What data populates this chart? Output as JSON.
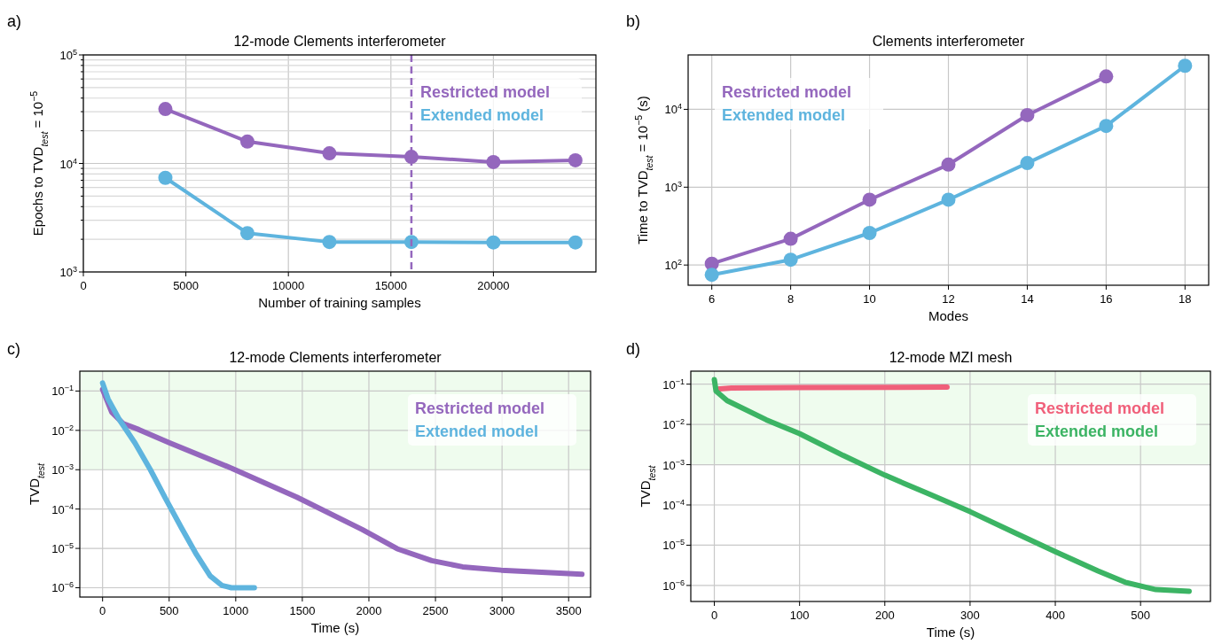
{
  "chart_data": [
    {
      "type": "line",
      "title": "12-mode Clements interferometer",
      "xlabel": "Number of training samples",
      "ylabel": "Epochs to TVD$_{test}$ = 10$^{−5}$",
      "annotations": [
        "a)"
      ],
      "log": "y",
      "grid": true,
      "marker": "circle",
      "line_style": "solid",
      "legend": "top right",
      "xlim": [
        0,
        25000
      ],
      "xticks": [
        0,
        5000,
        10000,
        15000,
        20000
      ],
      "ylim": [
        1000,
        100000
      ],
      "yticks": [
        {
          "value": 1000,
          "label": "10$^{3}$"
        },
        {
          "value": 2000,
          "label": null
        },
        {
          "value": 3000,
          "label": null
        },
        {
          "value": 4000,
          "label": null
        },
        {
          "value": 5000,
          "label": null
        },
        {
          "value": 6000,
          "label": null
        },
        {
          "value": 7000,
          "label": null
        },
        {
          "value": 8000,
          "label": null
        },
        {
          "value": 9000,
          "label": null
        },
        {
          "value": 10000,
          "label": "10$^{4}$"
        },
        {
          "value": 20000,
          "label": null
        },
        {
          "value": 30000,
          "label": null
        },
        {
          "value": 40000,
          "label": null
        },
        {
          "value": 50000,
          "label": null
        },
        {
          "value": 60000,
          "label": null
        },
        {
          "value": 70000,
          "label": null
        },
        {
          "value": 80000,
          "label": null
        },
        {
          "value": 90000,
          "label": null
        },
        {
          "value": 100000,
          "label": "10$^{5}$"
        }
      ],
      "x": [
        4000,
        8000,
        12000,
        16000,
        20000,
        24000
      ],
      "series": [
        {
          "name": "Restricted model",
          "color": "#9467bd",
          "values": [
            31700,
            15900,
            12400,
            11500,
            10300,
            10700
          ]
        },
        {
          "name": "Extended model",
          "color": "#5eb4de",
          "values": [
            7370,
            2280,
            1890,
            1890,
            1870,
            1870
          ]
        }
      ],
      "ref_lines": [
        {
          "axis": "x",
          "value": 16000,
          "color": "#9467bd",
          "line_style": "dashed"
        }
      ]
    },
    {
      "type": "line",
      "title": "Clements interferometer",
      "xlabel": "Modes",
      "ylabel": "Time to TVD$_{test}$ = 10$^{−5}$ (s)",
      "annotations": [
        "b)"
      ],
      "log": "y",
      "grid": true,
      "marker": "circle",
      "line_style": "solid",
      "legend": "top left",
      "xlim": [
        5.4,
        18.6
      ],
      "xticks": [
        6,
        8,
        10,
        12,
        14,
        16,
        18
      ],
      "ylim": [
        55,
        50000
      ],
      "yticks": [
        {
          "value": 100,
          "label": "10$^{2}$"
        },
        {
          "value": 1000,
          "label": "10$^{3}$"
        },
        {
          "value": 10000,
          "label": "10$^{4}$"
        }
      ],
      "series": [
        {
          "name": "Restricted model",
          "color": "#9467bd",
          "x": [
            6,
            8,
            10,
            12,
            14,
            16
          ],
          "values": [
            104,
            217,
            690,
            1950,
            8430,
            26400
          ]
        },
        {
          "name": "Extended model",
          "color": "#5eb4de",
          "x": [
            6,
            8,
            10,
            12,
            14,
            16,
            18
          ],
          "values": [
            75,
            117,
            258,
            690,
            2040,
            6120,
            36300
          ]
        }
      ]
    },
    {
      "type": "line",
      "title": "12-mode Clements interferometer",
      "xlabel": "Time (s)",
      "ylabel": "TVD$_{test}$",
      "annotations": [
        "c)"
      ],
      "log": "y",
      "grid": true,
      "marker": "none",
      "line_style": "solid",
      "legend": "top right",
      "xlim": [
        -171,
        3665
      ],
      "xticks": [
        0,
        500,
        1000,
        1500,
        2000,
        2500,
        3000,
        3500
      ],
      "ylim": [
        5.8e-07,
        0.32
      ],
      "yticks": [
        {
          "value": 1e-06,
          "label": "10$^{−6}$"
        },
        {
          "value": 1e-05,
          "label": "10$^{−5}$"
        },
        {
          "value": 0.0001,
          "label": "10$^{−4}$"
        },
        {
          "value": 0.001,
          "label": "10$^{−3}$"
        },
        {
          "value": 0.01,
          "label": "10$^{−2}$"
        },
        {
          "value": 0.1,
          "label": "10$^{−1}$"
        }
      ],
      "bands": [
        {
          "axis": "y",
          "from": 0.001,
          "to": 0.32,
          "color": "#effcee"
        }
      ],
      "series": [
        {
          "name": "Restricted model",
          "color": "#9467bd",
          "x": [
            0,
            69,
            156,
            272,
            504,
            967,
            1459,
            1951,
            2212,
            2472,
            2704,
            2994,
            3500,
            3600
          ],
          "values": [
            0.11,
            0.029,
            0.0148,
            0.0105,
            0.0048,
            0.0011,
            0.0002,
            3e-05,
            9.8e-06,
            4.9e-06,
            3.4e-06,
            2.8e-06,
            2.3e-06,
            2.2e-06
          ]
        },
        {
          "name": "Extended model",
          "color": "#5eb4de",
          "x": [
            0,
            41,
            127,
            243,
            359,
            475,
            591,
            706,
            808,
            895,
            967,
            1140
          ],
          "values": [
            0.16,
            0.063,
            0.0185,
            0.0048,
            0.001,
            0.00018,
            3.4e-05,
            6.9e-06,
            2e-06,
            1.15e-06,
            1e-06,
            1e-06
          ]
        }
      ]
    },
    {
      "type": "line",
      "title": "12-mode MZI mesh",
      "xlabel": "Time (s)",
      "ylabel": "TVD$_{test}$",
      "annotations": [
        "d)"
      ],
      "log": "y",
      "grid": true,
      "marker": "none",
      "line_style": "solid",
      "legend": "top right",
      "xlim": [
        -27.6,
        582
      ],
      "xticks": [
        0,
        100,
        200,
        300,
        400,
        500
      ],
      "ylim": [
        4e-07,
        0.21
      ],
      "yticks": [
        {
          "value": 1e-06,
          "label": "10$^{−6}$"
        },
        {
          "value": 1e-05,
          "label": "10$^{−5}$"
        },
        {
          "value": 0.0001,
          "label": "10$^{−4}$"
        },
        {
          "value": 0.001,
          "label": "10$^{−3}$"
        },
        {
          "value": 0.01,
          "label": "10$^{−2}$"
        },
        {
          "value": 0.1,
          "label": "10$^{−1}$"
        }
      ],
      "bands": [
        {
          "axis": "y",
          "from": 0.001,
          "to": 0.21,
          "color": "#effcee"
        }
      ],
      "series": [
        {
          "name": "Restricted model",
          "color": "#f0607a",
          "x": [
            3,
            20,
            100,
            273
          ],
          "values": [
            0.075,
            0.08,
            0.082,
            0.084
          ]
        },
        {
          "name": "Extended model",
          "color": "#3cb464",
          "x": [
            0,
            2,
            15,
            61,
            100,
            151,
            200,
            251,
            300,
            351,
            400,
            450,
            482,
            518,
            557
          ],
          "values": [
            0.13,
            0.067,
            0.039,
            0.013,
            0.0059,
            0.0017,
            0.00055,
            0.00019,
            6.8e-05,
            2.1e-05,
            6.9e-06,
            2.3e-06,
            1.2e-06,
            7.9e-07,
            7.2e-07
          ]
        }
      ]
    }
  ]
}
